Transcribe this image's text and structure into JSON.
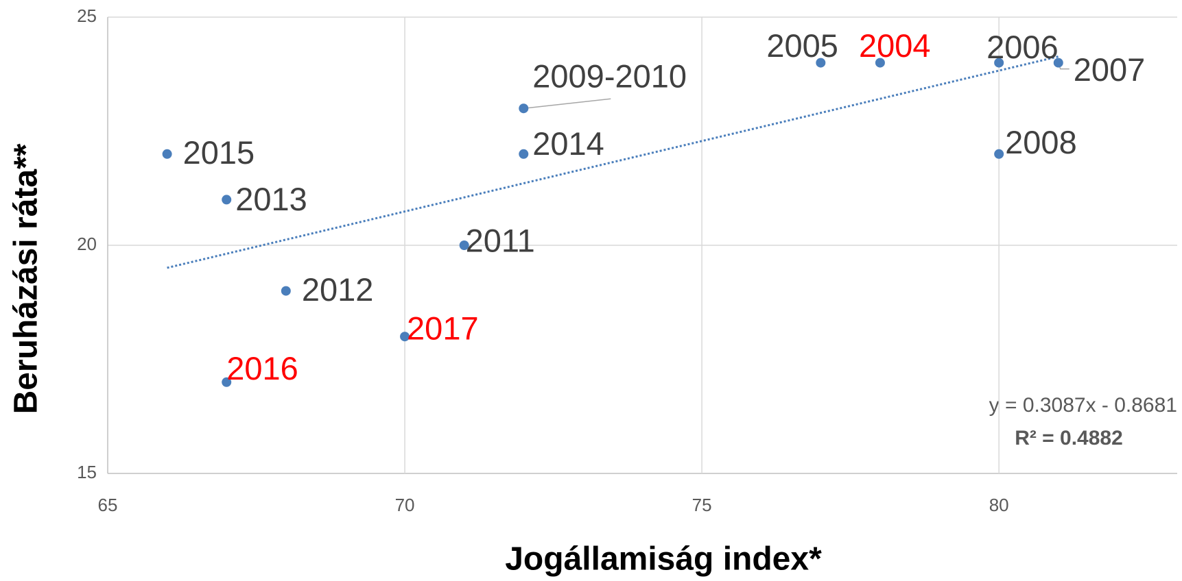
{
  "chart_data": {
    "type": "scatter",
    "x_label": "Jogállamiság index*",
    "y_label": "Beruházási ráta**",
    "xlim": [
      65,
      83
    ],
    "ylim": [
      15,
      25
    ],
    "xticks": [
      65,
      70,
      75,
      80
    ],
    "yticks": [
      15,
      20,
      25
    ],
    "grid": true,
    "color": "#4a7ebb",
    "points": [
      {
        "label": "2015",
        "x": 66,
        "y": 22,
        "label_color": "#404040"
      },
      {
        "label": "2013",
        "x": 67,
        "y": 21,
        "label_color": "#404040"
      },
      {
        "label": "2012",
        "x": 68,
        "y": 19,
        "label_color": "#404040"
      },
      {
        "label": "2016",
        "x": 67,
        "y": 17,
        "label_color": "#ff0000"
      },
      {
        "label": "2017",
        "x": 70,
        "y": 18,
        "label_color": "#ff0000"
      },
      {
        "label": "2011",
        "x": 71,
        "y": 20,
        "label_color": "#404040"
      },
      {
        "label": "2014",
        "x": 72,
        "y": 22,
        "label_color": "#404040"
      },
      {
        "label": "2009-2010",
        "x": 72,
        "y": 23,
        "label_color": "#404040"
      },
      {
        "label": "2005",
        "x": 77,
        "y": 24,
        "label_color": "#404040"
      },
      {
        "label": "2004",
        "x": 78,
        "y": 24,
        "label_color": "#ff0000"
      },
      {
        "label": "2006",
        "x": 80,
        "y": 24,
        "label_color": "#404040"
      },
      {
        "label": "2007",
        "x": 81,
        "y": 24,
        "label_color": "#404040"
      },
      {
        "label": "2008",
        "x": 80,
        "y": 22,
        "label_color": "#404040"
      }
    ],
    "trendline": {
      "slope": 0.3087,
      "intercept": -0.8681,
      "equation": "y = 0.3087x - 0.8681",
      "r2": "R² = 0.4882"
    }
  }
}
